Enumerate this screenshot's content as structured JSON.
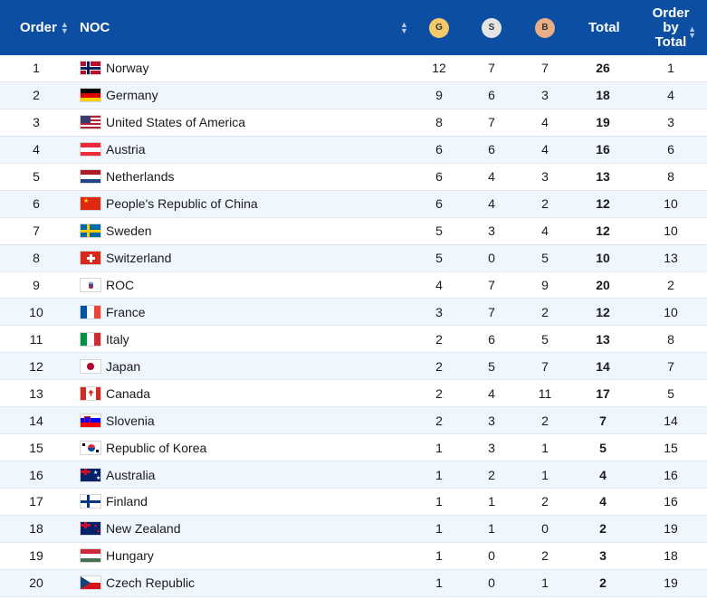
{
  "header": {
    "order": "Order",
    "noc": "NOC",
    "gold": "G",
    "silver": "S",
    "bronze": "B",
    "total": "Total",
    "order_by_total_1": "Order",
    "order_by_total_2": "by",
    "order_by_total_3": "Total"
  },
  "colors": {
    "header_bg": "#0b4ea2",
    "gold": "#f3c96a",
    "silver": "#e4e4e4",
    "bronze": "#e9ad86",
    "row_alt": "#f0f6fd"
  },
  "rows": [
    {
      "rank": "1",
      "noc": "Norway",
      "flag": "norway",
      "g": "12",
      "s": "7",
      "b": "7",
      "total": "26",
      "order_total": "1"
    },
    {
      "rank": "2",
      "noc": "Germany",
      "flag": "germany",
      "g": "9",
      "s": "6",
      "b": "3",
      "total": "18",
      "order_total": "4"
    },
    {
      "rank": "3",
      "noc": "United States of America",
      "flag": "usa",
      "g": "8",
      "s": "7",
      "b": "4",
      "total": "19",
      "order_total": "3"
    },
    {
      "rank": "4",
      "noc": "Austria",
      "flag": "austria",
      "g": "6",
      "s": "6",
      "b": "4",
      "total": "16",
      "order_total": "6"
    },
    {
      "rank": "5",
      "noc": "Netherlands",
      "flag": "netherlands",
      "g": "6",
      "s": "4",
      "b": "3",
      "total": "13",
      "order_total": "8"
    },
    {
      "rank": "6",
      "noc": "People's Republic of China",
      "flag": "china",
      "g": "6",
      "s": "4",
      "b": "2",
      "total": "12",
      "order_total": "10"
    },
    {
      "rank": "7",
      "noc": "Sweden",
      "flag": "sweden",
      "g": "5",
      "s": "3",
      "b": "4",
      "total": "12",
      "order_total": "10"
    },
    {
      "rank": "8",
      "noc": "Switzerland",
      "flag": "switzerland",
      "g": "5",
      "s": "0",
      "b": "5",
      "total": "10",
      "order_total": "13"
    },
    {
      "rank": "9",
      "noc": "ROC",
      "flag": "roc",
      "g": "4",
      "s": "7",
      "b": "9",
      "total": "20",
      "order_total": "2"
    },
    {
      "rank": "10",
      "noc": "France",
      "flag": "france",
      "g": "3",
      "s": "7",
      "b": "2",
      "total": "12",
      "order_total": "10"
    },
    {
      "rank": "11",
      "noc": "Italy",
      "flag": "italy",
      "g": "2",
      "s": "6",
      "b": "5",
      "total": "13",
      "order_total": "8"
    },
    {
      "rank": "12",
      "noc": "Japan",
      "flag": "japan",
      "g": "2",
      "s": "5",
      "b": "7",
      "total": "14",
      "order_total": "7"
    },
    {
      "rank": "13",
      "noc": "Canada",
      "flag": "canada",
      "g": "2",
      "s": "4",
      "b": "11",
      "total": "17",
      "order_total": "5"
    },
    {
      "rank": "14",
      "noc": "Slovenia",
      "flag": "slovenia",
      "g": "2",
      "s": "3",
      "b": "2",
      "total": "7",
      "order_total": "14"
    },
    {
      "rank": "15",
      "noc": "Republic of Korea",
      "flag": "korea",
      "g": "1",
      "s": "3",
      "b": "1",
      "total": "5",
      "order_total": "15"
    },
    {
      "rank": "16",
      "noc": "Australia",
      "flag": "australia",
      "g": "1",
      "s": "2",
      "b": "1",
      "total": "4",
      "order_total": "16"
    },
    {
      "rank": "17",
      "noc": "Finland",
      "flag": "finland",
      "g": "1",
      "s": "1",
      "b": "2",
      "total": "4",
      "order_total": "16"
    },
    {
      "rank": "18",
      "noc": "New Zealand",
      "flag": "newzealand",
      "g": "1",
      "s": "1",
      "b": "0",
      "total": "2",
      "order_total": "19"
    },
    {
      "rank": "19",
      "noc": "Hungary",
      "flag": "hungary",
      "g": "1",
      "s": "0",
      "b": "2",
      "total": "3",
      "order_total": "18"
    },
    {
      "rank": "20",
      "noc": "Czech Republic",
      "flag": "czech",
      "g": "1",
      "s": "0",
      "b": "1",
      "total": "2",
      "order_total": "19"
    }
  ]
}
